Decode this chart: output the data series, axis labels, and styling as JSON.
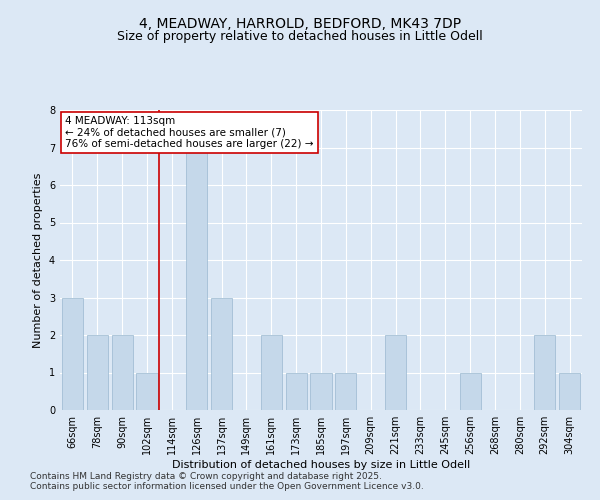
{
  "title1": "4, MEADWAY, HARROLD, BEDFORD, MK43 7DP",
  "title2": "Size of property relative to detached houses in Little Odell",
  "xlabel": "Distribution of detached houses by size in Little Odell",
  "ylabel": "Number of detached properties",
  "categories": [
    "66sqm",
    "78sqm",
    "90sqm",
    "102sqm",
    "114sqm",
    "126sqm",
    "137sqm",
    "149sqm",
    "161sqm",
    "173sqm",
    "185sqm",
    "197sqm",
    "209sqm",
    "221sqm",
    "233sqm",
    "245sqm",
    "256sqm",
    "268sqm",
    "280sqm",
    "292sqm",
    "304sqm"
  ],
  "values": [
    3,
    2,
    2,
    1,
    0,
    7,
    3,
    0,
    2,
    1,
    1,
    1,
    0,
    2,
    0,
    0,
    1,
    0,
    0,
    2,
    1
  ],
  "bar_color": "#c5d8ea",
  "bar_edge_color": "#9ab8d0",
  "vline_color": "#cc0000",
  "vline_x": 4.0,
  "annotation_text": "4 MEADWAY: 113sqm\n← 24% of detached houses are smaller (7)\n76% of semi-detached houses are larger (22) →",
  "annotation_box_facecolor": "#ffffff",
  "annotation_box_edgecolor": "#cc0000",
  "ylim": [
    0,
    8
  ],
  "yticks": [
    0,
    1,
    2,
    3,
    4,
    5,
    6,
    7,
    8
  ],
  "footer1": "Contains HM Land Registry data © Crown copyright and database right 2025.",
  "footer2": "Contains public sector information licensed under the Open Government Licence v3.0.",
  "bg_color": "#dce8f5",
  "plot_bg_color": "#dce8f5",
  "title1_fontsize": 10,
  "title2_fontsize": 9,
  "axis_label_fontsize": 8,
  "tick_fontsize": 7,
  "annotation_fontsize": 7.5,
  "footer_fontsize": 6.5
}
